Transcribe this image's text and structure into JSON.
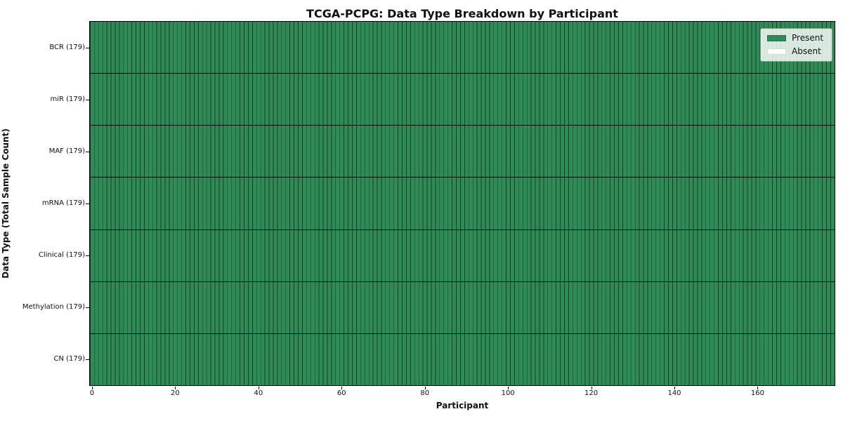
{
  "title": "TCGA-PCPG: Data Type Breakdown by Participant",
  "axes": {
    "x_label": "Participant",
    "y_label": "Data Type (Total Sample Count)",
    "x_ticks": [
      0,
      20,
      40,
      60,
      80,
      100,
      120,
      140,
      160
    ]
  },
  "legend": {
    "items": [
      {
        "label": "Present",
        "color": "#2e8b57"
      },
      {
        "label": "Absent",
        "color": "#ffffff"
      }
    ]
  },
  "colors": {
    "present": "#2e8b57",
    "absent": "#ffffff",
    "grid_line": "#000000"
  },
  "chart_data": {
    "type": "heatmap",
    "title": "TCGA-PCPG: Data Type Breakdown by Participant",
    "xlabel": "Participant",
    "ylabel": "Data Type (Total Sample Count)",
    "x_range": [
      0,
      179
    ],
    "x_ticks": [
      0,
      20,
      40,
      60,
      80,
      100,
      120,
      140,
      160
    ],
    "n_participants": 179,
    "legend": [
      "Present",
      "Absent"
    ],
    "present_color": "#2e8b57",
    "absent_color": "#ffffff",
    "rows": [
      {
        "label": "BCR (179)",
        "data_type": "BCR",
        "total_samples": 179,
        "present_count": 179,
        "absent_count": 0
      },
      {
        "label": "miR (179)",
        "data_type": "miR",
        "total_samples": 179,
        "present_count": 179,
        "absent_count": 0
      },
      {
        "label": "MAF (179)",
        "data_type": "MAF",
        "total_samples": 179,
        "present_count": 179,
        "absent_count": 0
      },
      {
        "label": "mRNA (179)",
        "data_type": "mRNA",
        "total_samples": 179,
        "present_count": 179,
        "absent_count": 0
      },
      {
        "label": "Clinical (179)",
        "data_type": "Clinical",
        "total_samples": 179,
        "present_count": 179,
        "absent_count": 0
      },
      {
        "label": "Methylation (179)",
        "data_type": "Methylation",
        "total_samples": 179,
        "present_count": 179,
        "absent_count": 0
      },
      {
        "label": "CN (179)",
        "data_type": "CN",
        "total_samples": 179,
        "present_count": 179,
        "absent_count": 0
      }
    ]
  }
}
